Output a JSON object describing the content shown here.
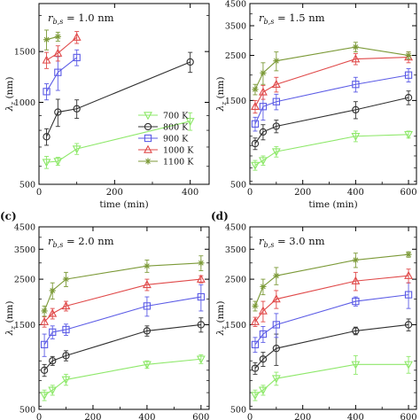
{
  "styles": {
    "700 K": {
      "color": "#8ee86a",
      "marker": "triangle-down"
    },
    "800 K": {
      "color": "#303030",
      "marker": "circle"
    },
    "900 K": {
      "color": "#5c5ce6",
      "marker": "square"
    },
    "1000 K": {
      "color": "#e04a4a",
      "marker": "triangle-up"
    },
    "1100 K": {
      "color": "#7c9a38",
      "marker": "star"
    }
  },
  "chart_data": [
    {
      "type": "line",
      "panel_label": "",
      "title": "r_{b,s} = 1.0 nm",
      "xlabel": "time (min)",
      "ylabel": "λ_z (nm)",
      "yscale": "log",
      "xlim": [
        0,
        450
      ],
      "ylim": [
        520,
        2200
      ],
      "x_ticks": [
        0,
        200,
        400
      ],
      "y_ticks": [
        500,
        1000,
        1500
      ],
      "legend_position": "lower-right",
      "series": [
        {
          "name": "700 K",
          "x": [
            20,
            50,
            100,
            400
          ],
          "y": [
            620,
            625,
            690,
            860
          ],
          "err": [
            30,
            20,
            30,
            60
          ]
        },
        {
          "name": "800 K",
          "x": [
            20,
            50,
            100,
            400
          ],
          "y": [
            760,
            925,
            950,
            1380
          ],
          "err": [
            50,
            100,
            70,
            110
          ]
        },
        {
          "name": "900 K",
          "x": [
            20,
            50,
            100
          ],
          "y": [
            1090,
            1270,
            1430
          ],
          "err": [
            70,
            170,
            90
          ]
        },
        {
          "name": "1000 K",
          "x": [
            20,
            50,
            100
          ],
          "y": [
            1400,
            1480,
            1680
          ],
          "err": [
            90,
            90,
            80
          ]
        },
        {
          "name": "1100 K",
          "x": [
            20,
            50
          ],
          "y": [
            1650,
            1690
          ],
          "err": [
            130,
            60
          ]
        }
      ]
    },
    {
      "type": "line",
      "panel_label": "",
      "title": "r_{b,s} = 1.5 nm",
      "xlabel": "time (min)",
      "ylabel": "λ_z (nm)",
      "yscale": "log",
      "xlim": [
        0,
        630
      ],
      "ylim": [
        580,
        4500
      ],
      "x_ticks": [
        0,
        200,
        400,
        600
      ],
      "y_ticks": [
        500,
        1500,
        2500,
        3500,
        4500
      ],
      "series": [
        {
          "name": "700 K",
          "x": [
            20,
            50,
            100,
            400,
            600
          ],
          "y": [
            720,
            760,
            840,
            1000,
            1020
          ],
          "err": [
            40,
            40,
            50,
            60,
            40
          ]
        },
        {
          "name": "800 K",
          "x": [
            20,
            50,
            100,
            400,
            600
          ],
          "y": [
            920,
            1050,
            1120,
            1350,
            1550
          ],
          "err": [
            60,
            90,
            80,
            130,
            120
          ]
        },
        {
          "name": "900 K",
          "x": [
            20,
            50,
            100,
            400,
            600
          ],
          "y": [
            1150,
            1400,
            1480,
            1800,
            2000
          ],
          "err": [
            90,
            200,
            130,
            150,
            150
          ]
        },
        {
          "name": "1000 K",
          "x": [
            20,
            50,
            100,
            400,
            600
          ],
          "y": [
            1400,
            1650,
            1800,
            2400,
            2450
          ],
          "err": [
            100,
            130,
            150,
            150,
            150
          ]
        },
        {
          "name": "1100 K",
          "x": [
            20,
            50,
            100,
            400,
            600
          ],
          "y": [
            1700,
            2050,
            2350,
            2750,
            2500
          ],
          "err": [
            100,
            250,
            250,
            150,
            100
          ]
        }
      ]
    },
    {
      "type": "line",
      "panel_label": "(c)",
      "title": "r_{b,s} = 2.0 nm",
      "xlabel": "",
      "ylabel": "λ_z (nm)",
      "yscale": "log",
      "xlim": [
        0,
        630
      ],
      "ylim": [
        580,
        4500
      ],
      "x_ticks": [
        0,
        200,
        400,
        600
      ],
      "y_ticks": [
        500,
        1500,
        2500,
        3500,
        4500
      ],
      "series": [
        {
          "name": "700 K",
          "x": [
            20,
            50,
            100,
            400,
            600
          ],
          "y": [
            680,
            720,
            810,
            960,
            1020
          ],
          "err": [
            40,
            40,
            50,
            40,
            50
          ]
        },
        {
          "name": "800 K",
          "x": [
            20,
            50,
            100,
            400,
            600
          ],
          "y": [
            900,
            1000,
            1060,
            1400,
            1500
          ],
          "err": [
            60,
            50,
            60,
            80,
            120
          ]
        },
        {
          "name": "900 K",
          "x": [
            20,
            50,
            100,
            400,
            600
          ],
          "y": [
            1200,
            1380,
            1420,
            1850,
            2050
          ],
          "err": [
            150,
            100,
            90,
            200,
            300
          ]
        },
        {
          "name": "1000 K",
          "x": [
            20,
            50,
            100,
            400,
            600
          ],
          "y": [
            1550,
            1700,
            1850,
            2350,
            2500
          ],
          "err": [
            90,
            100,
            100,
            150,
            100
          ]
        },
        {
          "name": "1100 K",
          "x": [
            20,
            50,
            100,
            400,
            600
          ],
          "y": [
            1750,
            2200,
            2500,
            2900,
            3000
          ],
          "err": [
            100,
            200,
            200,
            200,
            250
          ]
        }
      ]
    },
    {
      "type": "line",
      "panel_label": "(d)",
      "title": "r_{b,s} = 3.0 nm",
      "xlabel": "",
      "ylabel": "λ_z (nm)",
      "yscale": "log",
      "xlim": [
        0,
        630
      ],
      "ylim": [
        580,
        4500
      ],
      "x_ticks": [
        0,
        200,
        400,
        600
      ],
      "y_ticks": [
        500,
        1500,
        2500,
        3500,
        4500
      ],
      "series": [
        {
          "name": "700 K",
          "x": [
            20,
            50,
            100,
            400,
            600
          ],
          "y": [
            680,
            720,
            820,
            960,
            960
          ],
          "err": [
            40,
            40,
            60,
            100,
            90
          ]
        },
        {
          "name": "800 K",
          "x": [
            20,
            50,
            100,
            400,
            600
          ],
          "y": [
            920,
            1020,
            1150,
            1400,
            1500
          ],
          "err": [
            60,
            80,
            200,
            60,
            100
          ]
        },
        {
          "name": "900 K",
          "x": [
            20,
            50,
            100,
            400,
            600
          ],
          "y": [
            1200,
            1350,
            1500,
            1950,
            2100
          ],
          "err": [
            100,
            120,
            200,
            100,
            300
          ]
        },
        {
          "name": "1000 K",
          "x": [
            20,
            50,
            100,
            400,
            600
          ],
          "y": [
            1550,
            1750,
            2000,
            2450,
            2600
          ],
          "err": [
            80,
            200,
            200,
            250,
            200
          ]
        },
        {
          "name": "1100 K",
          "x": [
            20,
            50,
            100,
            400,
            600
          ],
          "y": [
            1850,
            2300,
            2600,
            3100,
            3300
          ],
          "err": [
            100,
            200,
            250,
            250,
            100
          ]
        }
      ]
    }
  ]
}
